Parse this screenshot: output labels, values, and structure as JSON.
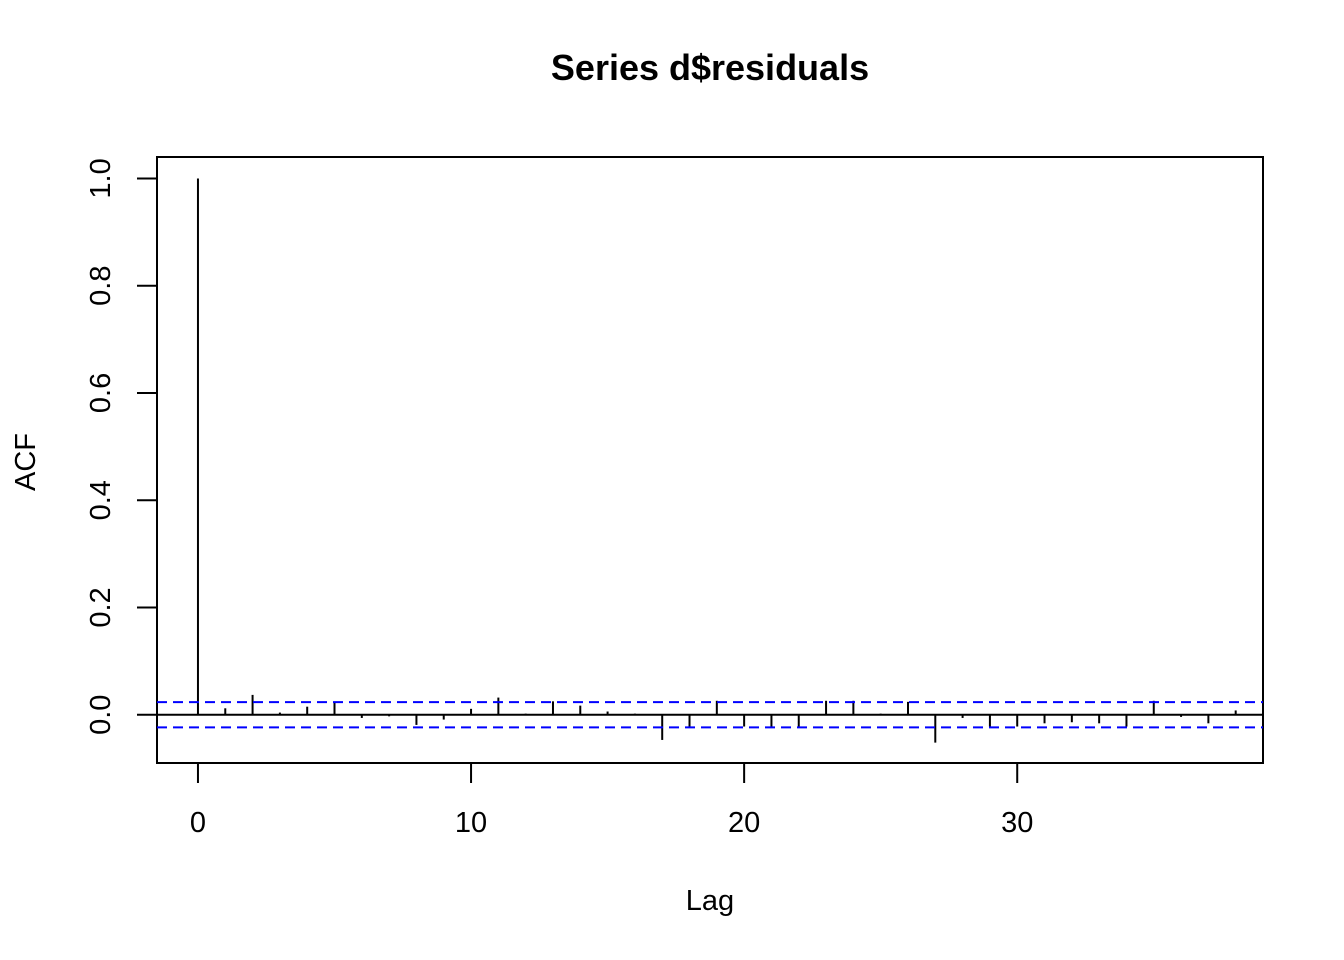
{
  "chart_data": {
    "type": "bar",
    "title": "Series  d$residuals",
    "xlabel": "Lag",
    "ylabel": "ACF",
    "xlim": [
      -1.5,
      39
    ],
    "ylim": [
      -0.09,
      1.04
    ],
    "xticks": [
      0,
      10,
      20,
      30
    ],
    "yticks": [
      0.0,
      0.2,
      0.4,
      0.6,
      0.8,
      1.0
    ],
    "xtick_labels": [
      "0",
      "10",
      "20",
      "30"
    ],
    "ytick_labels": [
      "0.0",
      "0.2",
      "0.4",
      "0.6",
      "0.8",
      "1.0"
    ],
    "lags": [
      0,
      1,
      2,
      3,
      4,
      5,
      6,
      7,
      8,
      9,
      10,
      11,
      12,
      13,
      14,
      15,
      16,
      17,
      18,
      19,
      20,
      21,
      22,
      23,
      24,
      25,
      26,
      27,
      28,
      29,
      30,
      31,
      32,
      33,
      34,
      35,
      36,
      37,
      38
    ],
    "acf": [
      1.0,
      0.012,
      0.037,
      0.004,
      0.015,
      0.024,
      -0.006,
      -0.003,
      -0.019,
      -0.009,
      0.011,
      0.032,
      0.002,
      0.025,
      0.017,
      0.006,
      0.002,
      -0.047,
      -0.022,
      0.026,
      -0.022,
      -0.022,
      -0.022,
      0.026,
      0.026,
      0.002,
      0.024,
      -0.052,
      -0.006,
      -0.022,
      -0.022,
      -0.016,
      -0.014,
      -0.016,
      -0.022,
      0.026,
      -0.004,
      -0.016,
      0.008
    ],
    "confidence_bound": 0.0235,
    "colors": {
      "bars": "#000000",
      "ci_lines": "#0000ff",
      "zero_line": "#000000"
    },
    "grid": false,
    "legend": "none"
  }
}
